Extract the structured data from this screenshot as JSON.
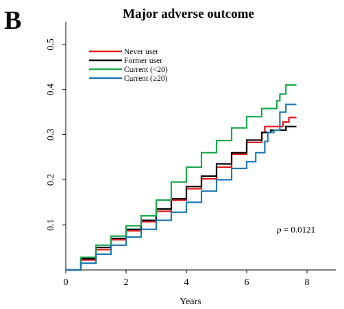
{
  "panel_letter": "B",
  "colors": {
    "never": "#e31a1c",
    "former": "#000000",
    "current_lt20": "#19a94b",
    "current_ge20": "#1f78b4"
  },
  "chart_data": {
    "type": "line",
    "title": "Major adverse outcome",
    "xlabel": "Years",
    "ylabel": "",
    "xlim": [
      0,
      8.5
    ],
    "ylim": [
      0,
      0.55
    ],
    "xticks": [
      0,
      2,
      4,
      6,
      8
    ],
    "xtick_labels": [
      "0",
      "2",
      "4",
      "6",
      "8"
    ],
    "yticks": [
      0.1,
      0.2,
      0.3,
      0.4,
      0.5
    ],
    "ytick_labels": [
      "0.1",
      "0.2",
      "0.3",
      "0.4",
      "0.5"
    ],
    "grid": false,
    "legend_position": "top-left",
    "annotation": {
      "italic": "p",
      "rest": " = 0.0121",
      "x": 7.0,
      "y": 0.083
    },
    "series": [
      {
        "name": "Never user",
        "color_key": "never",
        "x": [
          0,
          0.5,
          1,
          1.5,
          2,
          2.5,
          3,
          3.5,
          4,
          4.5,
          5,
          5.5,
          6,
          6.5,
          6.6,
          7.0,
          7.2,
          7.4,
          7.65
        ],
        "y": [
          0,
          0.022,
          0.045,
          0.067,
          0.087,
          0.107,
          0.13,
          0.155,
          0.18,
          0.202,
          0.228,
          0.257,
          0.283,
          0.305,
          0.318,
          0.318,
          0.328,
          0.338,
          0.338
        ]
      },
      {
        "name": "Former user",
        "color_key": "former",
        "x": [
          0,
          0.5,
          1,
          1.5,
          2,
          2.5,
          3,
          3.5,
          4,
          4.5,
          5,
          5.5,
          6,
          6.5,
          6.8,
          7.3,
          7.65
        ],
        "y": [
          0,
          0.025,
          0.05,
          0.07,
          0.09,
          0.11,
          0.135,
          0.158,
          0.185,
          0.208,
          0.235,
          0.26,
          0.288,
          0.305,
          0.31,
          0.318,
          0.318
        ]
      },
      {
        "name": "Current (<20)",
        "color_key": "current_lt20",
        "x": [
          0,
          0.5,
          1,
          1.5,
          2,
          2.5,
          3,
          3.5,
          4,
          4.5,
          5,
          5.5,
          6,
          6.5,
          7.0,
          7.1,
          7.3,
          7.65
        ],
        "y": [
          0,
          0.028,
          0.055,
          0.075,
          0.098,
          0.12,
          0.155,
          0.195,
          0.228,
          0.26,
          0.287,
          0.315,
          0.34,
          0.358,
          0.375,
          0.39,
          0.41,
          0.41
        ]
      },
      {
        "name": "Current (≥20)",
        "color_key": "current_ge20",
        "x": [
          0,
          0.5,
          1,
          1.5,
          2,
          2.5,
          3,
          3.5,
          4,
          4.5,
          5,
          5.5,
          6,
          6.3,
          6.6,
          6.7,
          6.9,
          7.1,
          7.3,
          7.65
        ],
        "y": [
          0,
          0.015,
          0.035,
          0.055,
          0.073,
          0.09,
          0.11,
          0.128,
          0.15,
          0.175,
          0.2,
          0.225,
          0.24,
          0.26,
          0.285,
          0.305,
          0.31,
          0.35,
          0.367,
          0.367
        ]
      }
    ]
  }
}
